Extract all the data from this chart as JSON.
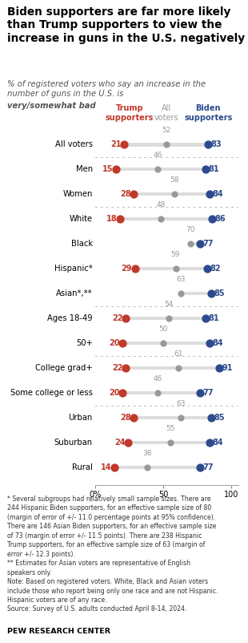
{
  "title": "Biden supporters are far more likely\nthan Trump supporters to view the\nincrease in guns in the U.S. negatively",
  "subtitle_plain": "% of registered voters who say an increase in the\nnumber of guns in the U.S. is ",
  "subtitle_bold": "very/somewhat bad",
  "categories": [
    "All voters",
    "Men",
    "Women",
    "White",
    "Black",
    "Hispanic*",
    "Asian*,**",
    "Ages 18-49",
    "50+",
    "College grad+",
    "Some college or less",
    "Urban",
    "Suburban",
    "Rural"
  ],
  "trump": [
    21,
    15,
    28,
    18,
    null,
    29,
    null,
    22,
    20,
    22,
    20,
    28,
    24,
    14
  ],
  "all_voters": [
    52,
    46,
    58,
    48,
    70,
    59,
    63,
    54,
    50,
    61,
    46,
    63,
    55,
    38
  ],
  "biden": [
    83,
    81,
    84,
    86,
    77,
    82,
    85,
    81,
    84,
    91,
    77,
    85,
    84,
    77
  ],
  "trump_color": "#C0392B",
  "all_color": "#999999",
  "biden_color": "#2C4B8C",
  "bar_color": "#DDDDDD",
  "separator_after_indices": [
    0,
    2,
    6,
    8,
    10
  ],
  "footnote": "* Several subgroups had relatively small sample sizes. There are\n244 Hispanic Biden supporters, for an effective sample size of 80\n(margin of error of +/- 11.0 percentage points at 95% confidence).\nThere are 146 Asian Biden supporters, for an effective sample size\nof 73 (margin of error +/- 11.5 points). There are 238 Hispanic\nTrump supporters, for an effective sample size of 63 (margin of\nerror +/- 12.3 points).\n** Estimates for Asian voters are representative of English\nspeakers only.\nNote: Based on registered voters. White, Black and Asian voters\ninclude those who report being only one race and are not Hispanic.\nHispanic voters are of any race.\nSource: Survey of U.S. adults conducted April 8-14, 2024.",
  "source_label": "PEW RESEARCH CENTER",
  "xlim": [
    0,
    100
  ],
  "xticks": [
    0,
    50,
    100
  ],
  "xticklabels": [
    "0%",
    "50",
    "100"
  ]
}
